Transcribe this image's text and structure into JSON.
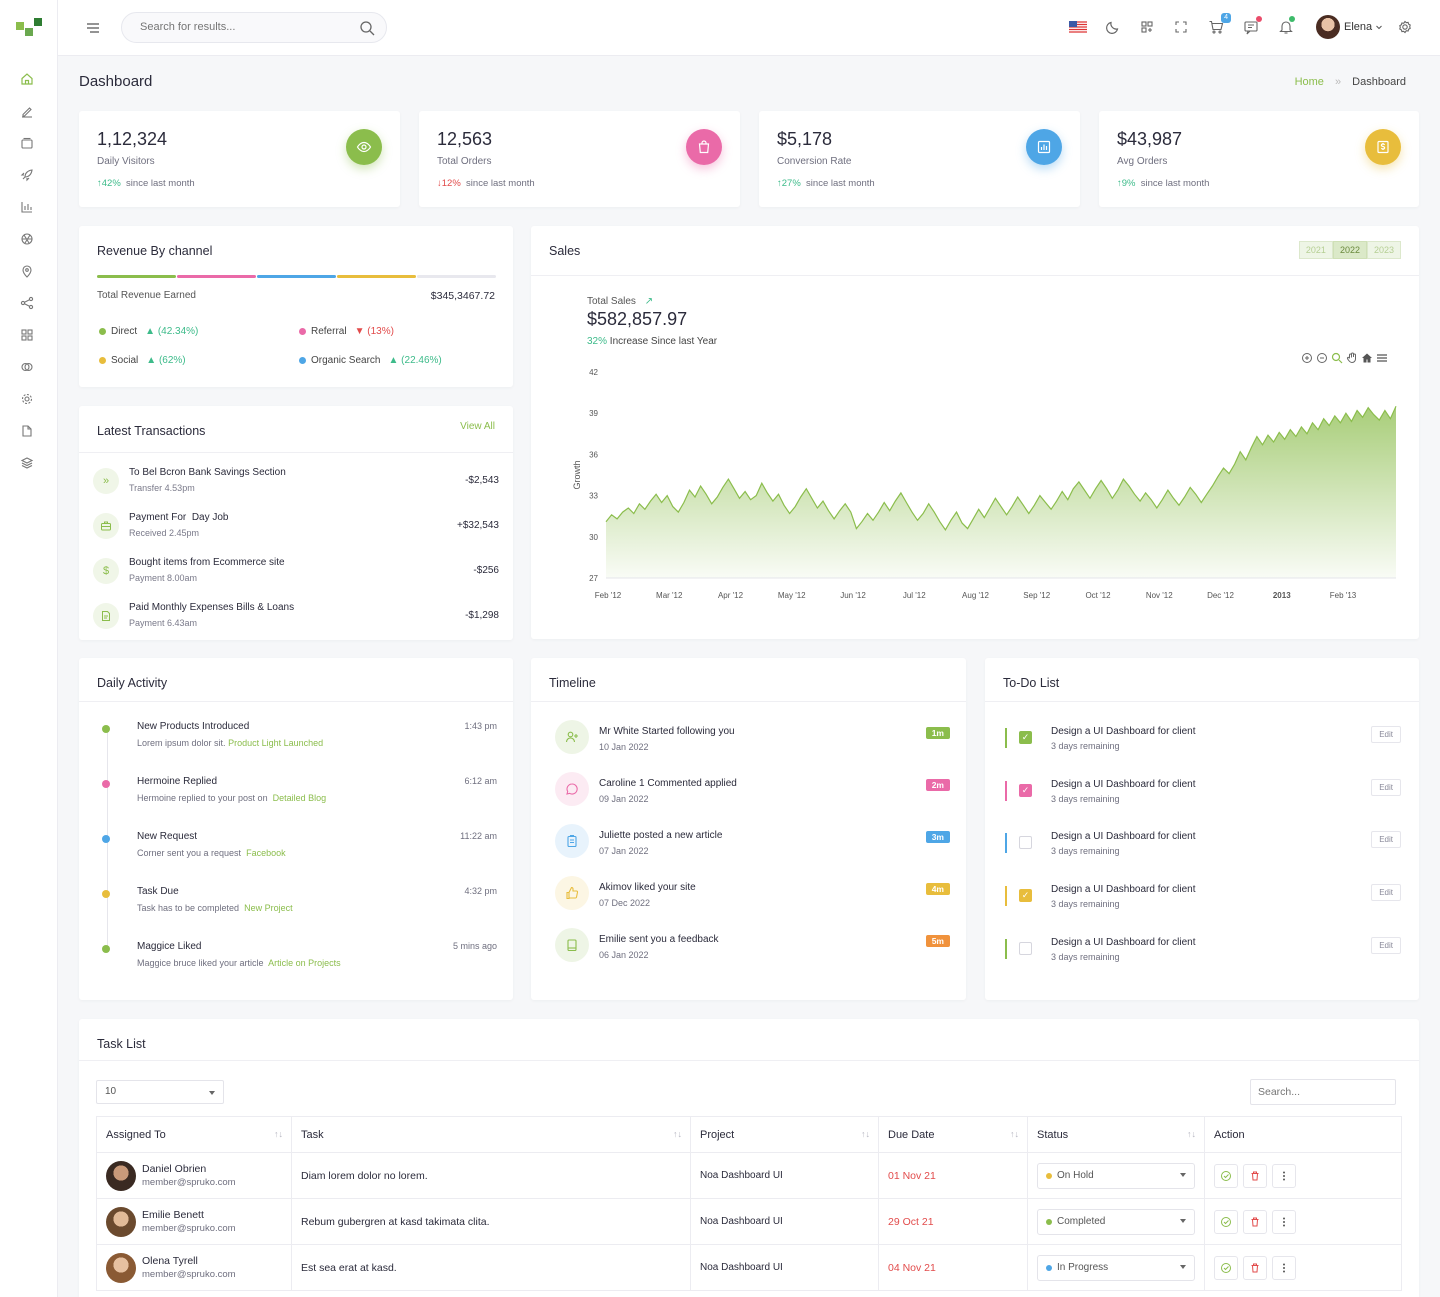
{
  "header": {
    "search_placeholder": "Search for results...",
    "cart_count": "4",
    "user_name": "Elena"
  },
  "page": {
    "title": "Dashboard",
    "breadcrumb": [
      "Home",
      "Dashboard"
    ]
  },
  "stats": [
    {
      "value": "1,12,324",
      "label": "Daily Visitors",
      "change": "42%",
      "trend": "up",
      "suffix": "since last month",
      "color": "#8bbd4c",
      "icon": "eye-icon"
    },
    {
      "value": "12,563",
      "label": "Total Orders",
      "change": "12%",
      "trend": "down",
      "suffix": "since last month",
      "color": "#ea6aa8",
      "icon": "bag-icon"
    },
    {
      "value": "$5,178",
      "label": "Conversion Rate",
      "change": "27%",
      "trend": "up",
      "suffix": "since last month",
      "color": "#4ea6e6",
      "icon": "chart-icon"
    },
    {
      "value": "$43,987",
      "label": "Avg Orders",
      "change": "9%",
      "trend": "up",
      "suffix": "since last month",
      "color": "#e8bd3c",
      "icon": "dollar-icon"
    }
  ],
  "revenue": {
    "title": "Revenue By channel",
    "total_label": "Total Revenue Earned",
    "total_value": "$345,3467.72",
    "channels": [
      {
        "name": "Direct",
        "pct": "(42.34%)",
        "trend": "up",
        "color": "#8bbd4c"
      },
      {
        "name": "Referral",
        "pct": "(13%)",
        "trend": "down",
        "color": "#ea6aa8"
      },
      {
        "name": "Social",
        "pct": "(62%)",
        "trend": "up",
        "color": "#e8bd3c"
      },
      {
        "name": "Organic Search",
        "pct": "(22.46%)",
        "trend": "up",
        "color": "#4ea6e6"
      }
    ]
  },
  "transactions": {
    "title": "Latest Transactions",
    "view_all": "View All",
    "items": [
      {
        "title_a": "To Bel Bcron Bank",
        "title_b": "Savings Section",
        "sub": "Transfer 4.53pm",
        "amount": "-$2,543",
        "icon": "chevrons-right-icon"
      },
      {
        "title_a": "Payment For",
        "title_b": "Day Job",
        "sub": "Received 2.45pm",
        "amount": "+$32,543",
        "icon": "briefcase-icon"
      },
      {
        "title_a": "Bought items from",
        "title_b": "Ecommerce site",
        "sub": "Payment 8.00am",
        "amount": "-$256",
        "icon": "dollar-icon"
      },
      {
        "title_a": "Paid Monthly Expenses",
        "title_b": "Bills & Loans",
        "sub": "Payment 6.43am",
        "amount": "-$1,298",
        "icon": "document-icon"
      }
    ]
  },
  "sales": {
    "title": "Sales",
    "years": [
      "2021",
      "2022",
      "2023"
    ],
    "active_year": "2022",
    "total_label": "Total Sales",
    "total_value": "$582,857.97",
    "growth_pct": "32%",
    "growth_text": "Increase Since last Year"
  },
  "chart_data": {
    "type": "area",
    "ylabel": "Growth",
    "ylim": [
      27,
      42
    ],
    "yticks": [
      "42",
      "39",
      "36",
      "33",
      "30",
      "27"
    ],
    "xticks": [
      "Feb '12",
      "Mar '12",
      "Apr '12",
      "May '12",
      "Jun '12",
      "Jul '12",
      "Aug '12",
      "Sep '12",
      "Oct '12",
      "Nov '12",
      "Dec '12",
      "2013",
      "Feb '13"
    ],
    "color": "#8bbd4c",
    "values": [
      31.1,
      31.6,
      31.3,
      31.8,
      32.1,
      31.7,
      32.4,
      32.0,
      32.6,
      33.1,
      32.5,
      33.0,
      32.2,
      31.8,
      32.5,
      33.4,
      32.9,
      33.7,
      33.1,
      32.4,
      32.9,
      33.6,
      34.2,
      33.5,
      32.8,
      33.3,
      32.7,
      33.0,
      33.9,
      33.2,
      32.6,
      33.1,
      32.3,
      31.7,
      32.2,
      32.9,
      33.5,
      32.8,
      32.1,
      32.6,
      31.9,
      31.3,
      31.9,
      32.4,
      31.8,
      30.6,
      31.1,
      31.7,
      31.2,
      31.8,
      32.5,
      31.9,
      32.6,
      33.2,
      32.5,
      31.8,
      31.2,
      31.7,
      32.4,
      31.8,
      31.1,
      30.5,
      31.2,
      31.8,
      31.0,
      30.6,
      31.3,
      32.0,
      31.4,
      32.1,
      32.8,
      32.2,
      31.6,
      32.2,
      32.9,
      32.3,
      31.7,
      32.3,
      33.0,
      32.5,
      32.0,
      32.6,
      33.3,
      32.7,
      33.5,
      34.0,
      33.4,
      32.8,
      33.5,
      34.1,
      33.5,
      32.8,
      33.4,
      34.2,
      33.7,
      33.1,
      32.6,
      33.2,
      32.7,
      32.1,
      32.7,
      33.4,
      32.8,
      32.3,
      32.9,
      33.6,
      33.1,
      32.5,
      33.1,
      33.7,
      34.4,
      35.0,
      34.6,
      35.3,
      36.2,
      35.6,
      36.5,
      37.3,
      36.7,
      37.4,
      36.9,
      37.6,
      37.1,
      37.8,
      37.3,
      38.0,
      37.5,
      38.3,
      37.8,
      38.6,
      38.1,
      38.8,
      38.3,
      39.0,
      38.4,
      39.2,
      38.7,
      39.4,
      38.9,
      38.5,
      39.2,
      38.6,
      39.5
    ]
  },
  "daily_activity": {
    "title": "Daily Activity",
    "items": [
      {
        "title": "New Products Introduced",
        "sub": "Lorem ipsum dolor sit.",
        "link": "Product Light Launched",
        "time": "1:43 pm",
        "color": "#8bbd4c"
      },
      {
        "title": "Hermoine Replied",
        "sub": "Hermoine replied to your post on",
        "link": "Detailed Blog",
        "time": "6:12 am",
        "color": "#ea6aa8"
      },
      {
        "title": "New Request",
        "sub": "Corner sent you a request",
        "link": "Facebook",
        "time": "11:22 am",
        "color": "#4ea6e6"
      },
      {
        "title": "Task Due",
        "sub": "Task has to be completed",
        "link": "New Project",
        "time": "4:32 pm",
        "color": "#e8bd3c"
      },
      {
        "title": "Maggice Liked",
        "sub": "Maggice bruce liked your article",
        "link": "Article on Projects",
        "time": "5 mins ago",
        "color": "#8bbd4c"
      }
    ]
  },
  "timeline": {
    "title": "Timeline",
    "items": [
      {
        "title": "Mr White Started following you",
        "date": "10 Jan 2022",
        "badge": "1m",
        "color": "#8bbd4c",
        "bg": "#eef5e6",
        "icon": "user-plus-icon"
      },
      {
        "title": "Caroline 1 Commented applied",
        "date": "09 Jan 2022",
        "badge": "2m",
        "color": "#ea6aa8",
        "bg": "#fcebf3",
        "icon": "comment-icon"
      },
      {
        "title": "Juliette posted a new article",
        "date": "07 Jan 2022",
        "badge": "3m",
        "color": "#4ea6e6",
        "bg": "#e8f3fc",
        "icon": "clipboard-icon"
      },
      {
        "title": "Akimov liked your site",
        "date": "07 Dec 2022",
        "badge": "4m",
        "color": "#e8bd3c",
        "bg": "#fcf6e4",
        "icon": "thumbs-up-icon"
      },
      {
        "title": "Emilie sent you a feedback",
        "date": "06 Jan 2022",
        "badge": "5m",
        "color": "#f0923c",
        "bg": "#eef5e6",
        "icon": "book-icon"
      }
    ]
  },
  "todo": {
    "title": "To-Do List",
    "edit_label": "Edit",
    "items": [
      {
        "title": "Design a UI Dashboard for client",
        "sub": "3 days remaining",
        "checked": true,
        "color": "#8bbd4c"
      },
      {
        "title": "Design a UI Dashboard for client",
        "sub": "3 days remaining",
        "checked": true,
        "color": "#ea6aa8"
      },
      {
        "title": "Design a UI Dashboard for client",
        "sub": "3 days remaining",
        "checked": false,
        "color": "#4ea6e6"
      },
      {
        "title": "Design a UI Dashboard for client",
        "sub": "3 days remaining",
        "checked": true,
        "color": "#e8bd3c"
      },
      {
        "title": "Design a UI Dashboard for client",
        "sub": "3 days remaining",
        "checked": false,
        "color": "#8bbd4c"
      }
    ]
  },
  "tasks": {
    "title": "Task List",
    "page_size": "10",
    "search_placeholder": "Search...",
    "columns": [
      "Assigned To",
      "Task",
      "Project",
      "Due Date",
      "Status",
      "Action"
    ],
    "rows": [
      {
        "name": "Daniel Obrien",
        "email": "member@spruko.com",
        "task": "Diam lorem dolor no lorem.",
        "project": "Noa Dashboard UI",
        "due": "01 Nov 21",
        "status": "On Hold",
        "status_color": "#e8bd3c"
      },
      {
        "name": "Emilie Benett",
        "email": "member@spruko.com",
        "task": "Rebum gubergren at kasd takimata clita.",
        "project": "Noa Dashboard UI",
        "due": "29 Oct 21",
        "status": "Completed",
        "status_color": "#8bbd4c"
      },
      {
        "name": "Olena Tyrell",
        "email": "member@spruko.com",
        "task": "Est sea erat at kasd.",
        "project": "Noa Dashboard UI",
        "due": "04 Nov 21",
        "status": "In Progress",
        "status_color": "#4ea6e6"
      }
    ]
  }
}
